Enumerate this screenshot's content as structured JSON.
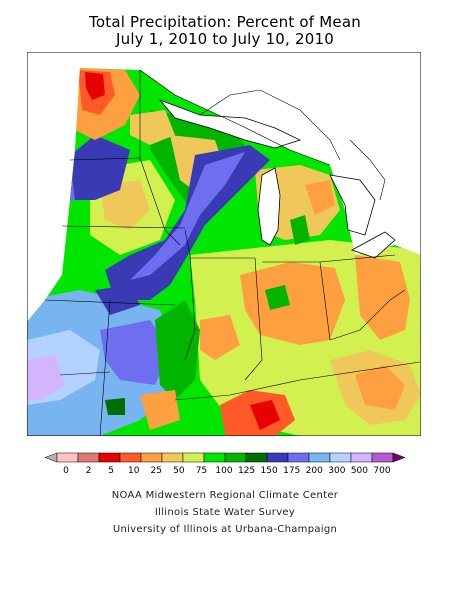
{
  "title_line1": "Total Precipitation: Percent of Mean",
  "title_line2": "July 1, 2010 to July 10, 2010",
  "legend": {
    "colors": [
      "#b4b4b4",
      "#ffc3c3",
      "#e07878",
      "#e60000",
      "#ff5a28",
      "#ffa040",
      "#f0c85a",
      "#d2f050",
      "#00e600",
      "#00b400",
      "#006e00",
      "#3a3ab4",
      "#6e6ef0",
      "#78b4f0",
      "#b4d2ff",
      "#d2b4ff",
      "#b45ad2",
      "#780078"
    ],
    "labels": [
      "0",
      "2",
      "5",
      "10",
      "25",
      "50",
      "75",
      "100",
      "125",
      "150",
      "175",
      "200",
      "300",
      "500",
      "700"
    ]
  },
  "credits": [
    "NOAA Midwestern Regional Climate Center",
    "Illinois State Water Survey",
    "University of Illinois at Urbana-Champaign"
  ]
}
